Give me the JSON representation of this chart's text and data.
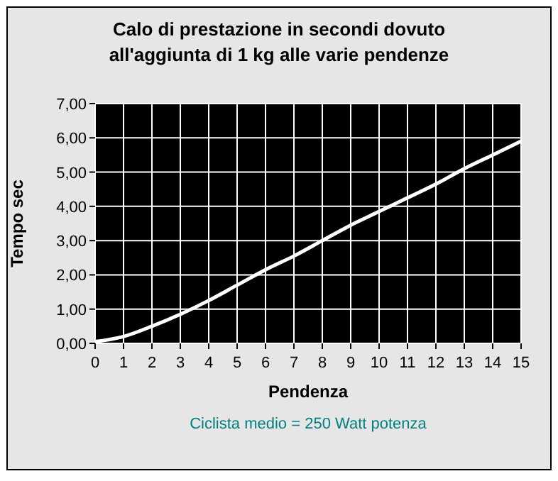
{
  "chart_data": {
    "type": "line",
    "title": "Calo di prestazione in secondi dovuto all'aggiunta di 1 kg alle varie pendenze",
    "xlabel": "Pendenza",
    "ylabel": "Tempo sec",
    "annotations": [
      "Ciclista medio = 250 Watt potenza"
    ],
    "x": [
      0,
      1,
      2,
      3,
      4,
      5,
      6,
      7,
      8,
      9,
      10,
      11,
      12,
      13,
      14,
      15
    ],
    "series": [
      {
        "color": "#ffffff",
        "values": [
          0.05,
          0.2,
          0.5,
          0.85,
          1.25,
          1.7,
          2.15,
          2.55,
          3.0,
          3.45,
          3.85,
          4.25,
          4.65,
          5.1,
          5.5,
          5.9
        ]
      }
    ],
    "xlim": [
      0,
      15
    ],
    "xticks": [
      0,
      1,
      2,
      3,
      4,
      5,
      6,
      7,
      8,
      9,
      10,
      11,
      12,
      13,
      14,
      15
    ],
    "ylim": [
      0,
      7
    ],
    "yticks": [
      {
        "value": 0,
        "label": "0,00"
      },
      {
        "value": 1,
        "label": "1,00"
      },
      {
        "value": 2,
        "label": "2,00"
      },
      {
        "value": 3,
        "label": "3,00"
      },
      {
        "value": 4,
        "label": "4,00"
      },
      {
        "value": 5,
        "label": "5,00"
      },
      {
        "value": 6,
        "label": "6,00"
      },
      {
        "value": 7,
        "label": "7,00"
      }
    ],
    "grid": true,
    "marker": "none",
    "line_style": "solid"
  }
}
